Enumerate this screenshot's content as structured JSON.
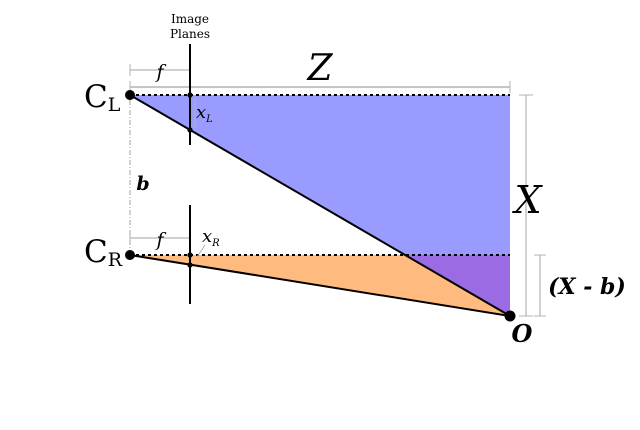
{
  "labels": {
    "image_planes_line1": "Image",
    "image_planes_line2": "Planes",
    "Z": "Z",
    "X": "X",
    "X_minus_b": "(X - b)",
    "b": "b",
    "f_top": "f",
    "f_bottom": "f",
    "O": "O",
    "CL_main": "C",
    "CL_sub": "L",
    "CR_main": "C",
    "CR_sub": "R",
    "xL_main": "x",
    "xL_sub": "L",
    "xR_main": "x",
    "xR_sub": "R"
  },
  "colors": {
    "blue_region": "#9a9bff",
    "orange_region": "#ffbb7f",
    "purple_overlap": "#9a6be2",
    "ink": "#000000",
    "dimension_gray": "#b3b3b3"
  }
}
